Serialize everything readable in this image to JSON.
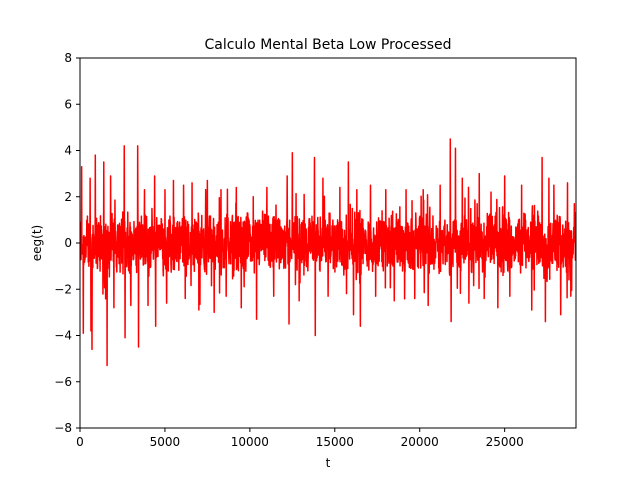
{
  "chart_data": {
    "type": "line",
    "title": "Calculo Mental Beta Low Processed",
    "xlabel": "t",
    "ylabel": "eeg(t)",
    "xlim": [
      0,
      29200
    ],
    "ylim": [
      -8,
      8
    ],
    "x_ticks": [
      0,
      5000,
      10000,
      15000,
      20000,
      25000
    ],
    "y_ticks": [
      -8,
      -6,
      -4,
      -2,
      0,
      2,
      4,
      6,
      8
    ],
    "grid": false,
    "legend": "none",
    "series": [
      {
        "color": "#ff0000",
        "x_start": 0,
        "x_end": 29200,
        "baseline_amplitude": 1.0,
        "peaks": [
          {
            "x": 100,
            "y": 3.3
          },
          {
            "x": 200,
            "y": -3.9
          },
          {
            "x": 600,
            "y": 2.8
          },
          {
            "x": 700,
            "y": -2.3
          },
          {
            "x": 650,
            "y": -3.8
          },
          {
            "x": 700,
            "y": 3.8
          },
          {
            "x": 900,
            "y": 3.8
          },
          {
            "x": 700,
            "y": -4.6
          },
          {
            "x": 1400,
            "y": 3.5
          },
          {
            "x": 1600,
            "y": -5.3
          },
          {
            "x": 1800,
            "y": 2.9
          },
          {
            "x": 2000,
            "y": -2.8
          },
          {
            "x": 2600,
            "y": 4.2
          },
          {
            "x": 2650,
            "y": -4.1
          },
          {
            "x": 3000,
            "y": -2.7
          },
          {
            "x": 3400,
            "y": 4.2
          },
          {
            "x": 3450,
            "y": -4.5
          },
          {
            "x": 3800,
            "y": 2.3
          },
          {
            "x": 4000,
            "y": -2.7
          },
          {
            "x": 4400,
            "y": 2.9
          },
          {
            "x": 4450,
            "y": -3.6
          },
          {
            "x": 5000,
            "y": 2.3
          },
          {
            "x": 5100,
            "y": -2.6
          },
          {
            "x": 5500,
            "y": 2.7
          },
          {
            "x": 6100,
            "y": 2.5
          },
          {
            "x": 6200,
            "y": -2.4
          },
          {
            "x": 6600,
            "y": 2.6
          },
          {
            "x": 7000,
            "y": -2.9
          },
          {
            "x": 7500,
            "y": 2.7
          },
          {
            "x": 7900,
            "y": -3.0
          },
          {
            "x": 8300,
            "y": 2.3
          },
          {
            "x": 8600,
            "y": -2.3
          },
          {
            "x": 9200,
            "y": 2.4
          },
          {
            "x": 9500,
            "y": -2.8
          },
          {
            "x": 10200,
            "y": 2.0
          },
          {
            "x": 10400,
            "y": -3.3
          },
          {
            "x": 11000,
            "y": 2.4
          },
          {
            "x": 11400,
            "y": -2.3
          },
          {
            "x": 12200,
            "y": 2.9
          },
          {
            "x": 12300,
            "y": -3.5
          },
          {
            "x": 12500,
            "y": 3.9
          },
          {
            "x": 12900,
            "y": -2.5
          },
          {
            "x": 13200,
            "y": 2.1
          },
          {
            "x": 13800,
            "y": 3.7
          },
          {
            "x": 13850,
            "y": -4.0
          },
          {
            "x": 14300,
            "y": 2.8
          },
          {
            "x": 14600,
            "y": -2.3
          },
          {
            "x": 15300,
            "y": 2.4
          },
          {
            "x": 15800,
            "y": 3.5
          },
          {
            "x": 16100,
            "y": -3.1
          },
          {
            "x": 16300,
            "y": 2.3
          },
          {
            "x": 16500,
            "y": -3.6
          },
          {
            "x": 17100,
            "y": 2.5
          },
          {
            "x": 17400,
            "y": -2.3
          },
          {
            "x": 18000,
            "y": 2.3
          },
          {
            "x": 18500,
            "y": -2.5
          },
          {
            "x": 19200,
            "y": 2.3
          },
          {
            "x": 19700,
            "y": -2.4
          },
          {
            "x": 20200,
            "y": 2.3
          },
          {
            "x": 20500,
            "y": -2.7
          },
          {
            "x": 21200,
            "y": 2.5
          },
          {
            "x": 21800,
            "y": 4.5
          },
          {
            "x": 21850,
            "y": -3.4
          },
          {
            "x": 22100,
            "y": 4.1
          },
          {
            "x": 22500,
            "y": 2.8
          },
          {
            "x": 22900,
            "y": -2.6
          },
          {
            "x": 23500,
            "y": 3.0
          },
          {
            "x": 23800,
            "y": -2.4
          },
          {
            "x": 24200,
            "y": 2.2
          },
          {
            "x": 24600,
            "y": -2.8
          },
          {
            "x": 25000,
            "y": 2.9
          },
          {
            "x": 25300,
            "y": -2.3
          },
          {
            "x": 26000,
            "y": 2.5
          },
          {
            "x": 26600,
            "y": -2.9
          },
          {
            "x": 27200,
            "y": 3.7
          },
          {
            "x": 27400,
            "y": -3.4
          },
          {
            "x": 27600,
            "y": 2.8
          },
          {
            "x": 27900,
            "y": 2.5
          },
          {
            "x": 28300,
            "y": -3.1
          },
          {
            "x": 28700,
            "y": 2.6
          },
          {
            "x": 28900,
            "y": -2.3
          },
          {
            "x": 29100,
            "y": 1.7
          }
        ]
      }
    ]
  }
}
